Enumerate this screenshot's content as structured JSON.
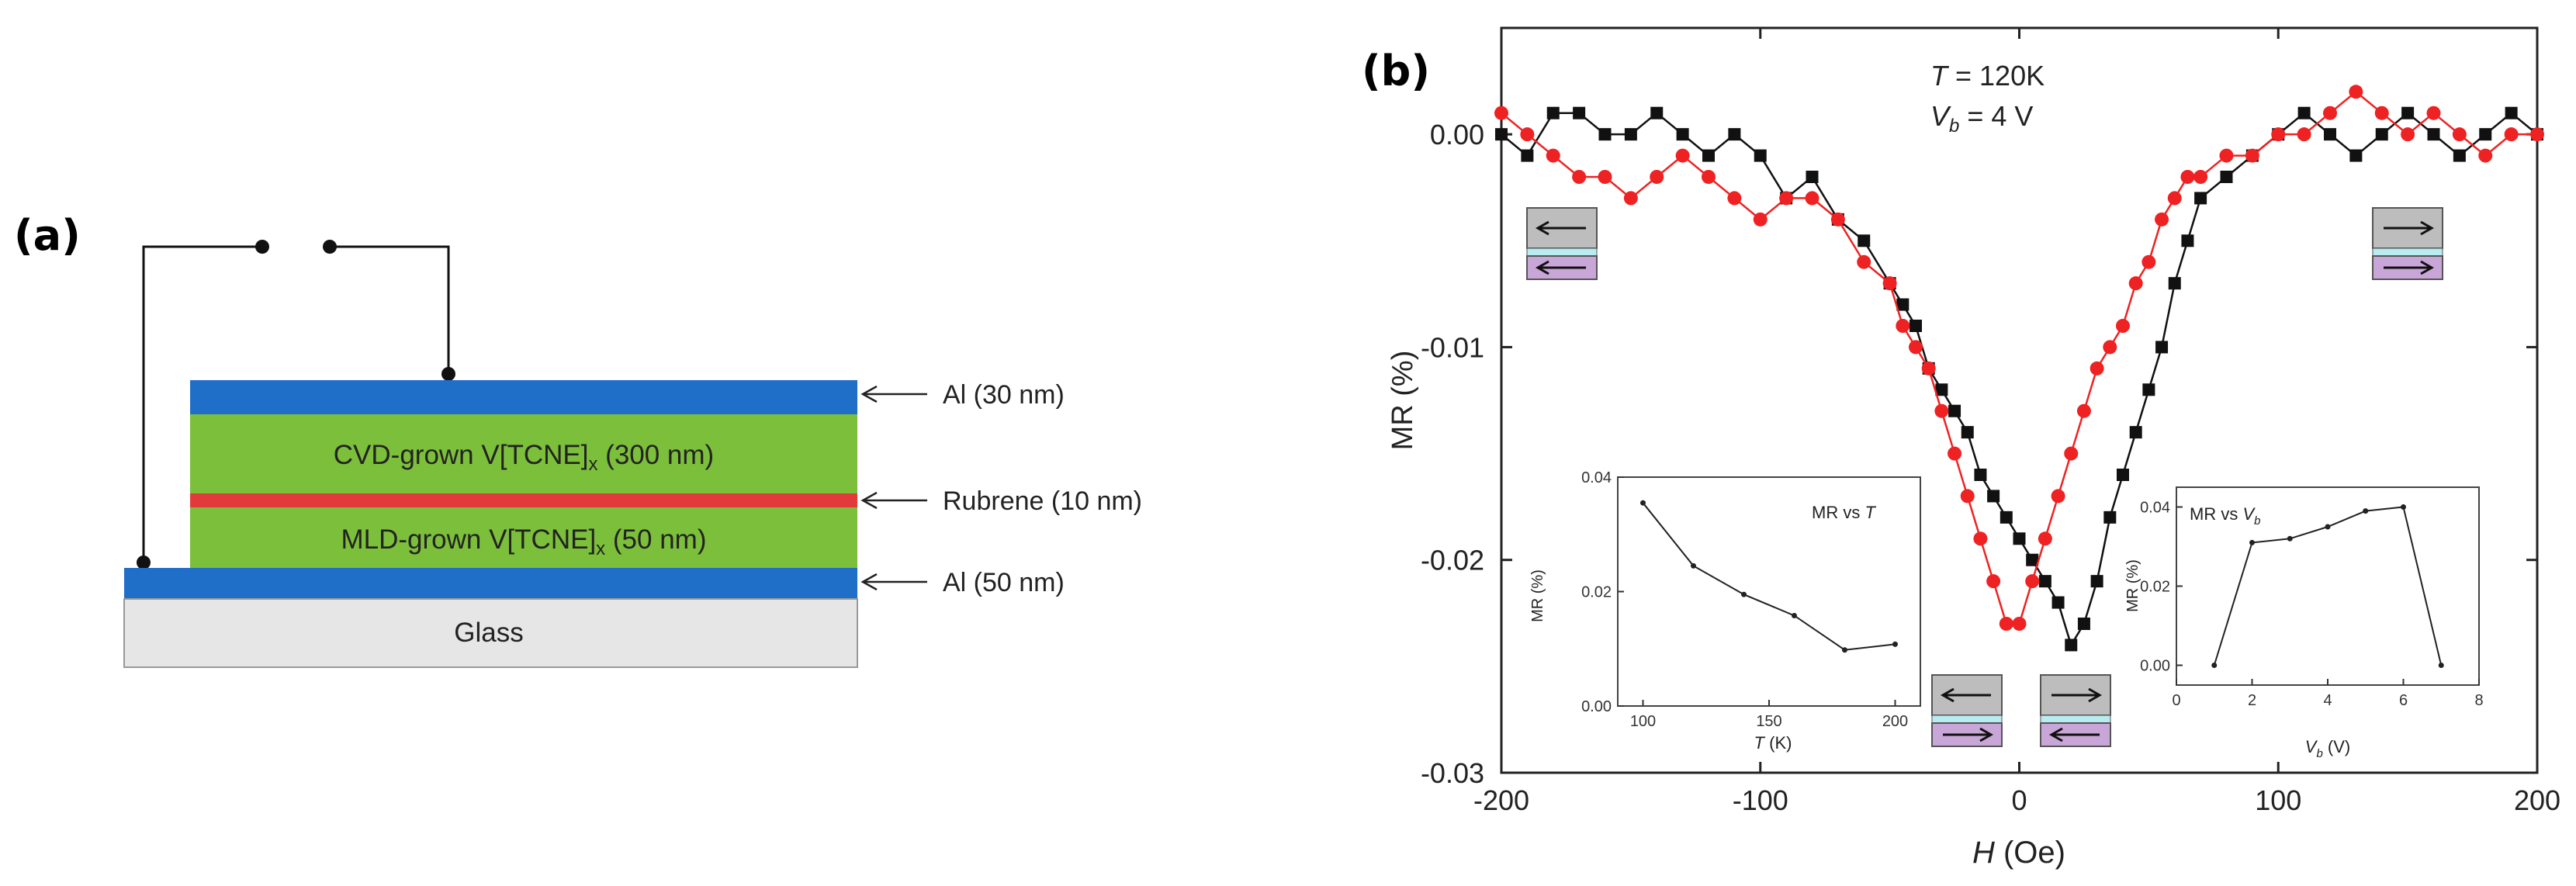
{
  "panel_a": {
    "label": "(a)",
    "layers": [
      {
        "name": "top-al",
        "text": "",
        "callout": "Al (30 nm)",
        "color": "#1f6fc8"
      },
      {
        "name": "cvd",
        "text": "CVD-grown V[TCNE]",
        "sub": "x",
        "suffix": " (300 nm)",
        "color": "#7bbf3a"
      },
      {
        "name": "rubrene",
        "text": "",
        "callout": "Rubrene (10 nm)",
        "color": "#e23a3a"
      },
      {
        "name": "mld",
        "text": "MLD-grown V[TCNE]",
        "sub": "x",
        "suffix": " (50 nm)",
        "color": "#7bbf3a"
      },
      {
        "name": "bottom-al",
        "text": "",
        "callout": "Al (50 nm)",
        "color": "#1f6fc8"
      },
      {
        "name": "glass",
        "text": "Glass",
        "color": "#e6e6e6"
      }
    ]
  },
  "panel_b": {
    "label": "(b)",
    "annot_T": "T",
    "annot_T_val": " = 120K",
    "annot_V": "V",
    "annot_V_sub": "b",
    "annot_V_val": " = 4 V",
    "colors": {
      "black": "#111111",
      "red": "#ee2222",
      "gray": "#bdbdbd",
      "cyan": "#b8ecf0",
      "purple": "#c9a6d8"
    }
  },
  "chart_data": [
    {
      "type": "scatter",
      "title": "",
      "xlabel_italic": "H",
      "xlabel_rest": " (Oe)",
      "ylabel": "MR (%)",
      "xlim": [
        -200,
        200
      ],
      "ylim": [
        -0.03,
        0.005
      ],
      "xticks": [
        -200,
        -100,
        0,
        100,
        200
      ],
      "xtick_labels": [
        "-200",
        "-100",
        "0",
        "100",
        "200"
      ],
      "yticks": [
        0.0,
        -0.01,
        -0.02,
        -0.03
      ],
      "ytick_labels": [
        "0.00",
        "-0.01",
        "-0.02",
        "-0.03"
      ],
      "series": [
        {
          "name": "black",
          "marker": "square",
          "color": "#111111",
          "x": [
            -200,
            -190,
            -180,
            -170,
            -160,
            -150,
            -140,
            -130,
            -120,
            -110,
            -100,
            -90,
            -80,
            -70,
            -60,
            -50,
            -45,
            -40,
            -35,
            -30,
            -25,
            -20,
            -15,
            -10,
            -5,
            0,
            5,
            10,
            15,
            20,
            25,
            30,
            35,
            40,
            45,
            50,
            55,
            60,
            65,
            70,
            80,
            90,
            100,
            110,
            120,
            130,
            140,
            150,
            160,
            170,
            180,
            190,
            200
          ],
          "y": [
            0.0,
            -0.001,
            0.001,
            0.001,
            0.0,
            0.0,
            0.001,
            0.0,
            -0.001,
            0.0,
            -0.001,
            -0.003,
            -0.002,
            -0.004,
            -0.005,
            -0.007,
            -0.008,
            -0.009,
            -0.011,
            -0.012,
            -0.013,
            -0.014,
            -0.016,
            -0.017,
            -0.018,
            -0.019,
            -0.02,
            -0.021,
            -0.022,
            -0.024,
            -0.023,
            -0.021,
            -0.018,
            -0.016,
            -0.014,
            -0.012,
            -0.01,
            -0.007,
            -0.005,
            -0.003,
            -0.002,
            -0.001,
            0.0,
            0.001,
            0.0,
            -0.001,
            0.0,
            0.001,
            0.0,
            -0.001,
            0.0,
            0.001,
            0.0
          ]
        },
        {
          "name": "red",
          "marker": "circle",
          "color": "#ee2222",
          "x": [
            -200,
            -190,
            -180,
            -170,
            -160,
            -150,
            -140,
            -130,
            -120,
            -110,
            -100,
            -90,
            -80,
            -70,
            -60,
            -50,
            -45,
            -40,
            -35,
            -30,
            -25,
            -20,
            -15,
            -10,
            -5,
            0,
            5,
            10,
            15,
            20,
            25,
            30,
            35,
            40,
            45,
            50,
            55,
            60,
            65,
            70,
            80,
            90,
            100,
            110,
            120,
            130,
            140,
            150,
            160,
            170,
            180,
            190,
            200
          ],
          "y": [
            0.001,
            0.0,
            -0.001,
            -0.002,
            -0.002,
            -0.003,
            -0.002,
            -0.001,
            -0.002,
            -0.003,
            -0.004,
            -0.003,
            -0.003,
            -0.004,
            -0.006,
            -0.007,
            -0.009,
            -0.01,
            -0.011,
            -0.013,
            -0.015,
            -0.017,
            -0.019,
            -0.021,
            -0.023,
            -0.023,
            -0.021,
            -0.019,
            -0.017,
            -0.015,
            -0.013,
            -0.011,
            -0.01,
            -0.009,
            -0.007,
            -0.006,
            -0.004,
            -0.003,
            -0.002,
            -0.002,
            -0.001,
            -0.001,
            0.0,
            0.0,
            0.001,
            0.002,
            0.001,
            0.0,
            0.001,
            0.0,
            -0.001,
            0.0,
            0.0
          ]
        }
      ]
    },
    {
      "type": "line",
      "title": "MR vs ",
      "title_italic": "T",
      "xlabel": "T",
      "xlabel_rest": " (K)",
      "ylabel": "MR (%)",
      "xlim": [
        90,
        210
      ],
      "ylim": [
        0.0,
        0.04
      ],
      "xticks": [
        100,
        150,
        200
      ],
      "xtick_labels": [
        "100",
        "150",
        "200"
      ],
      "yticks": [
        0.0,
        0.02,
        0.04
      ],
      "ytick_labels": [
        "0.00",
        "0.02",
        "0.04"
      ],
      "x": [
        100,
        120,
        140,
        160,
        180,
        200
      ],
      "y": [
        0.0355,
        0.0245,
        0.0195,
        0.0158,
        0.0098,
        0.0108
      ]
    },
    {
      "type": "line",
      "title": "MR vs ",
      "title_italic": "V",
      "title_sub": "b",
      "xlabel": "V",
      "xlabel_sub": "b",
      "xlabel_rest": " (V)",
      "ylabel": "MR (%)",
      "xlim": [
        0,
        8
      ],
      "ylim": [
        -0.005,
        0.045
      ],
      "xticks": [
        0,
        2,
        4,
        6,
        8
      ],
      "xtick_labels": [
        "0",
        "2",
        "4",
        "6",
        "8"
      ],
      "yticks": [
        0.0,
        0.02,
        0.04
      ],
      "ytick_labels": [
        "0.00",
        "0.02",
        "0.04"
      ],
      "x": [
        1,
        2,
        3,
        4,
        5,
        6,
        7
      ],
      "y": [
        0.0,
        0.031,
        0.032,
        0.035,
        0.039,
        0.04,
        0.0
      ]
    }
  ]
}
